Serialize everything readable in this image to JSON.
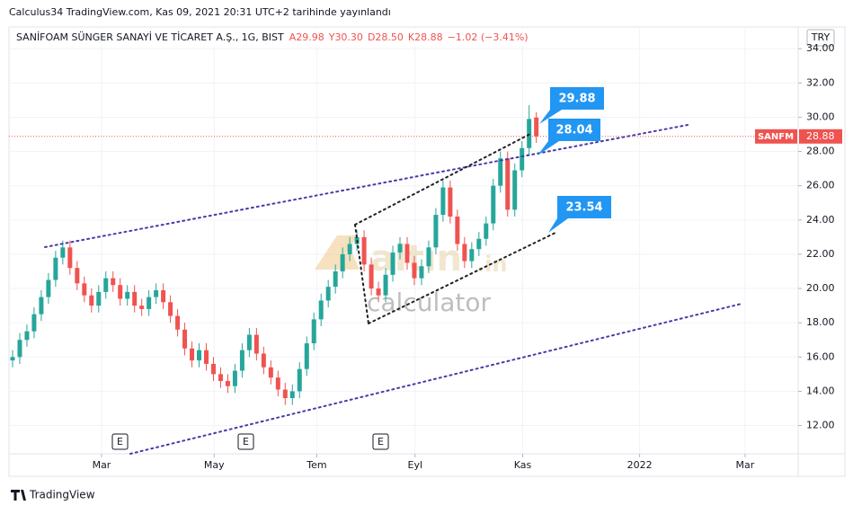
{
  "chart_data": {
    "type": "candlestick",
    "published": "Calculus34 TradingView.com, Kas 09, 2021 20:31 UTC+2 tarihinde yayınlandı",
    "title": "SANİFOAM SÜNGER SANAYİ VE TİCARET A.Ş., 1G, BIST",
    "ohlc": [
      "A29.98",
      "Y30.30",
      "D28.50",
      "K28.88"
    ],
    "change": "−1.02 (−3.41%)",
    "currency": "TRY",
    "symbol": "SANFM",
    "last_price": "28.88",
    "annotations": [
      "29.88",
      "28.04",
      "23.54"
    ],
    "earnings_markers": [
      "E",
      "E",
      "E"
    ],
    "watermark": [
      "altın",
      ".in",
      "calculator"
    ],
    "footer": "TradingView",
    "up_color": "#26a69a",
    "down_color": "#ef5350",
    "open": [
      15.8,
      16.0,
      17.0,
      17.5,
      18.5,
      19.5,
      20.5,
      21.8,
      22.4,
      21.2,
      20.3,
      19.6,
      19.0,
      19.8,
      20.6,
      20.2,
      19.4,
      19.8,
      19.0,
      18.8,
      19.5,
      19.9,
      19.2,
      18.4,
      17.6,
      16.5,
      15.8,
      16.4,
      15.6,
      15.0,
      14.6,
      14.3,
      15.2,
      16.4,
      17.3,
      16.2,
      15.4,
      14.8,
      14.1,
      13.6,
      14.0,
      15.3,
      16.8,
      18.2,
      19.3,
      20.1,
      21.0,
      22.0,
      22.6,
      23.0,
      21.4,
      20.0,
      19.6,
      20.8,
      22.1,
      22.6,
      21.5,
      20.6,
      21.3,
      22.4,
      24.3,
      25.9,
      24.2,
      22.6,
      21.6,
      22.3,
      22.9,
      23.8,
      26.0,
      27.6,
      24.6,
      26.9,
      28.2,
      29.98
    ],
    "high": [
      16.4,
      17.4,
      17.9,
      18.9,
      19.9,
      20.9,
      22.2,
      22.8,
      22.8,
      21.6,
      20.7,
      20.0,
      20.2,
      21.0,
      21.0,
      20.6,
      20.2,
      20.2,
      19.4,
      19.9,
      20.3,
      20.3,
      19.6,
      18.8,
      18.0,
      16.9,
      16.8,
      16.8,
      16.0,
      15.4,
      15.0,
      15.6,
      16.8,
      17.7,
      17.7,
      16.6,
      15.8,
      15.2,
      14.5,
      14.4,
      15.7,
      17.2,
      18.6,
      19.7,
      20.5,
      21.4,
      22.4,
      23.0,
      23.4,
      23.4,
      21.8,
      20.4,
      21.2,
      22.5,
      23.0,
      23.0,
      21.9,
      21.7,
      22.8,
      24.7,
      26.3,
      26.3,
      24.6,
      23.0,
      22.7,
      23.3,
      24.2,
      26.4,
      28.0,
      28.0,
      27.3,
      28.6,
      30.7,
      30.3
    ],
    "low": [
      15.4,
      15.6,
      16.6,
      17.1,
      18.1,
      19.1,
      20.1,
      21.4,
      20.8,
      19.9,
      19.2,
      18.6,
      18.6,
      19.4,
      19.8,
      19.0,
      19.0,
      18.6,
      18.4,
      18.4,
      19.1,
      18.8,
      18.0,
      17.2,
      16.1,
      15.4,
      15.4,
      15.2,
      14.6,
      14.2,
      13.9,
      13.9,
      14.8,
      16.0,
      15.8,
      15.0,
      14.4,
      13.7,
      13.2,
      13.2,
      13.6,
      14.9,
      16.4,
      17.8,
      18.9,
      19.7,
      20.6,
      21.6,
      22.2,
      21.0,
      19.6,
      19.2,
      19.2,
      20.4,
      21.7,
      21.1,
      20.2,
      20.2,
      20.9,
      22.0,
      23.9,
      23.8,
      22.2,
      21.2,
      21.2,
      21.9,
      22.5,
      23.4,
      25.6,
      24.2,
      24.2,
      26.5,
      27.8,
      28.5
    ],
    "close": [
      16.0,
      17.0,
      17.5,
      18.5,
      19.5,
      20.5,
      21.8,
      22.4,
      21.2,
      20.3,
      19.6,
      19.0,
      19.8,
      20.6,
      20.2,
      19.4,
      19.8,
      19.0,
      18.8,
      19.5,
      19.9,
      19.2,
      18.4,
      17.6,
      16.5,
      15.8,
      16.4,
      15.6,
      15.0,
      14.6,
      14.3,
      15.2,
      16.4,
      17.3,
      16.2,
      15.4,
      14.8,
      14.1,
      13.6,
      14.0,
      15.3,
      16.8,
      18.2,
      19.3,
      20.1,
      21.0,
      22.0,
      22.6,
      23.0,
      21.4,
      20.0,
      19.6,
      20.8,
      22.1,
      22.6,
      21.5,
      20.6,
      21.3,
      22.4,
      24.3,
      25.9,
      24.2,
      22.6,
      21.6,
      22.3,
      22.9,
      23.8,
      26.0,
      27.6,
      24.6,
      26.9,
      28.2,
      29.9,
      28.88
    ],
    "xlim": [
      -0.5,
      109.5
    ],
    "xticks": [
      {
        "value": 12.4,
        "label": "Mar"
      },
      {
        "value": 28.1,
        "label": "May"
      },
      {
        "value": 42.4,
        "label": "Tem"
      },
      {
        "value": 56.1,
        "label": "Eyl"
      },
      {
        "value": 71.1,
        "label": "Kas"
      },
      {
        "value": 87.4,
        "label": "2022"
      },
      {
        "value": 102.1,
        "label": "Mar"
      }
    ],
    "ylim": [
      10.35,
      35.27
    ],
    "yticks": [
      {
        "value": 12,
        "label": "12.00"
      },
      {
        "value": 14,
        "label": "14.00"
      },
      {
        "value": 16,
        "label": "16.00"
      },
      {
        "value": 18,
        "label": "18.00"
      },
      {
        "value": 20,
        "label": "20.00"
      },
      {
        "value": 22,
        "label": "22.00"
      },
      {
        "value": 24,
        "label": "24.00"
      },
      {
        "value": 26,
        "label": "26.00"
      },
      {
        "value": 28,
        "label": "28.00"
      },
      {
        "value": 30,
        "label": "30.00"
      },
      {
        "value": 32,
        "label": "32.00"
      },
      {
        "value": 34,
        "label": "34.00"
      }
    ],
    "grid": true
  }
}
